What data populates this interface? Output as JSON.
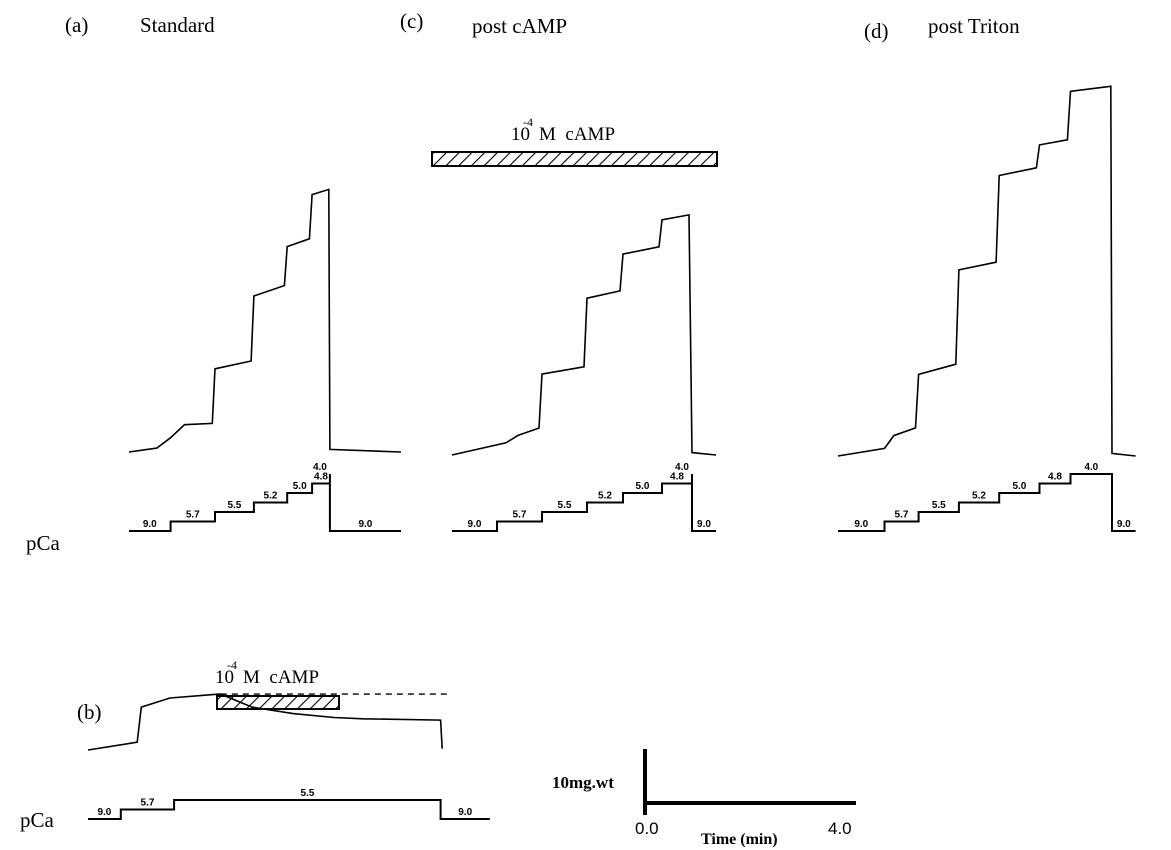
{
  "colors": {
    "ink": "#000000",
    "background": "#ffffff"
  },
  "chart_data": [
    {
      "type": "line",
      "panel": "(a)",
      "title": "Standard",
      "series": [
        {
          "values_unit": "mg.wt",
          "points": [
            [
              0,
              0
            ],
            [
              0.5,
              0.15
            ],
            [
              0.75,
              0.55
            ],
            [
              1.0,
              1.05
            ],
            [
              1.5,
              1.1
            ],
            [
              1.55,
              3.2
            ],
            [
              2.2,
              3.5
            ],
            [
              2.25,
              6.0
            ],
            [
              2.8,
              6.4
            ],
            [
              2.85,
              7.9
            ],
            [
              3.25,
              8.2
            ],
            [
              3.3,
              9.9
            ],
            [
              3.6,
              10.1
            ],
            [
              3.62,
              0.1
            ],
            [
              4.9,
              0.0
            ]
          ]
        }
      ],
      "pca_steps": [
        {
          "pca": "9.0",
          "from": 0.0,
          "to": 0.75
        },
        {
          "pca": "5.7",
          "from": 0.75,
          "to": 1.55
        },
        {
          "pca": "5.5",
          "from": 1.55,
          "to": 2.25
        },
        {
          "pca": "5.2",
          "from": 2.25,
          "to": 2.85
        },
        {
          "pca": "5.0",
          "from": 2.85,
          "to": 3.3
        },
        {
          "pca": "4.8",
          "from": 3.3,
          "to": 3.62
        },
        {
          "pca": "4.0",
          "from": 3.62,
          "to": 3.62
        },
        {
          "pca": "9.0",
          "from": 3.62,
          "to": 4.9
        }
      ],
      "pca_axis_label": "pCa"
    },
    {
      "type": "line",
      "panel": "(b)",
      "annotation_bar": {
        "base": "10",
        "exponent": "-4",
        "text": "M  cAMP",
        "from": 1.6,
        "to": 3.35
      },
      "series": [
        {
          "values_unit": "mg.wt",
          "points": [
            [
              0,
              0
            ],
            [
              0.6,
              0.6
            ],
            [
              0.65,
              3.3
            ],
            [
              1.0,
              4.0
            ],
            [
              1.6,
              4.3
            ],
            [
              1.62,
              4.3
            ],
            [
              2.0,
              3.3
            ],
            [
              2.5,
              2.8
            ],
            [
              3.0,
              2.5
            ],
            [
              3.35,
              2.4
            ],
            [
              4.3,
              2.3
            ],
            [
              4.32,
              0.1
            ]
          ]
        }
      ],
      "reference_line": {
        "value": 4.3,
        "style": "dashed"
      },
      "pca_steps": [
        {
          "pca": "9.0",
          "from": 0.0,
          "to": 0.4
        },
        {
          "pca": "5.7",
          "from": 0.4,
          "to": 1.05
        },
        {
          "pca": "5.5",
          "from": 1.05,
          "to": 4.3
        },
        {
          "pca": "9.0",
          "from": 4.3,
          "to": 4.9
        }
      ],
      "pca_axis_label": "pCa"
    },
    {
      "type": "line",
      "panel": "(c)",
      "title": "post  cAMP",
      "annotation_bar": {
        "base": "10",
        "exponent": "-4",
        "text": "M  cAMP"
      },
      "series": [
        {
          "values_unit": "mg.wt",
          "points": [
            [
              0,
              0
            ],
            [
              0.9,
              0.5
            ],
            [
              1.1,
              0.8
            ],
            [
              1.45,
              1.1
            ],
            [
              1.5,
              3.3
            ],
            [
              2.2,
              3.6
            ],
            [
              2.25,
              6.4
            ],
            [
              2.8,
              6.7
            ],
            [
              2.85,
              8.2
            ],
            [
              3.45,
              8.5
            ],
            [
              3.5,
              9.6
            ],
            [
              3.95,
              9.8
            ],
            [
              4.0,
              0.1
            ],
            [
              4.4,
              0.0
            ]
          ]
        }
      ],
      "pca_steps": [
        {
          "pca": "9.0",
          "from": 0.0,
          "to": 0.75
        },
        {
          "pca": "5.7",
          "from": 0.75,
          "to": 1.5
        },
        {
          "pca": "5.5",
          "from": 1.5,
          "to": 2.25
        },
        {
          "pca": "5.2",
          "from": 2.25,
          "to": 2.85
        },
        {
          "pca": "5.0",
          "from": 2.85,
          "to": 3.5
        },
        {
          "pca": "4.8",
          "from": 3.5,
          "to": 4.0
        },
        {
          "pca": "4.0",
          "from": 4.0,
          "to": 4.0
        },
        {
          "pca": "9.0",
          "from": 4.0,
          "to": 4.4
        }
      ],
      "pca_axis_label": ""
    },
    {
      "type": "line",
      "panel": "(d)",
      "title": "post  Triton",
      "series": [
        {
          "values_unit": "mg.wt",
          "points": [
            [
              0,
              0
            ],
            [
              0.75,
              0.3
            ],
            [
              0.9,
              0.8
            ],
            [
              1.25,
              1.1
            ],
            [
              1.3,
              3.2
            ],
            [
              1.9,
              3.6
            ],
            [
              1.95,
              7.3
            ],
            [
              2.55,
              7.6
            ],
            [
              2.6,
              11.0
            ],
            [
              3.2,
              11.3
            ],
            [
              3.25,
              12.2
            ],
            [
              3.7,
              12.4
            ],
            [
              3.75,
              14.3
            ],
            [
              4.4,
              14.5
            ],
            [
              4.42,
              0.1
            ],
            [
              4.8,
              0.0
            ]
          ]
        }
      ],
      "pca_steps": [
        {
          "pca": "9.0",
          "from": 0.0,
          "to": 0.75
        },
        {
          "pca": "5.7",
          "from": 0.75,
          "to": 1.3
        },
        {
          "pca": "5.5",
          "from": 1.3,
          "to": 1.95
        },
        {
          "pca": "5.2",
          "from": 1.95,
          "to": 2.6
        },
        {
          "pca": "5.0",
          "from": 2.6,
          "to": 3.25
        },
        {
          "pca": "4.8",
          "from": 3.25,
          "to": 3.75
        },
        {
          "pca": "4.0",
          "from": 3.75,
          "to": 4.42
        },
        {
          "pca": "9.0",
          "from": 4.42,
          "to": 4.8
        }
      ],
      "pca_axis_label": ""
    }
  ],
  "scale_bars": {
    "force_label": "10mg.wt",
    "force_value": 10,
    "time_label": "Time (min)",
    "time_start": "0.0",
    "time_end": "4.0"
  }
}
